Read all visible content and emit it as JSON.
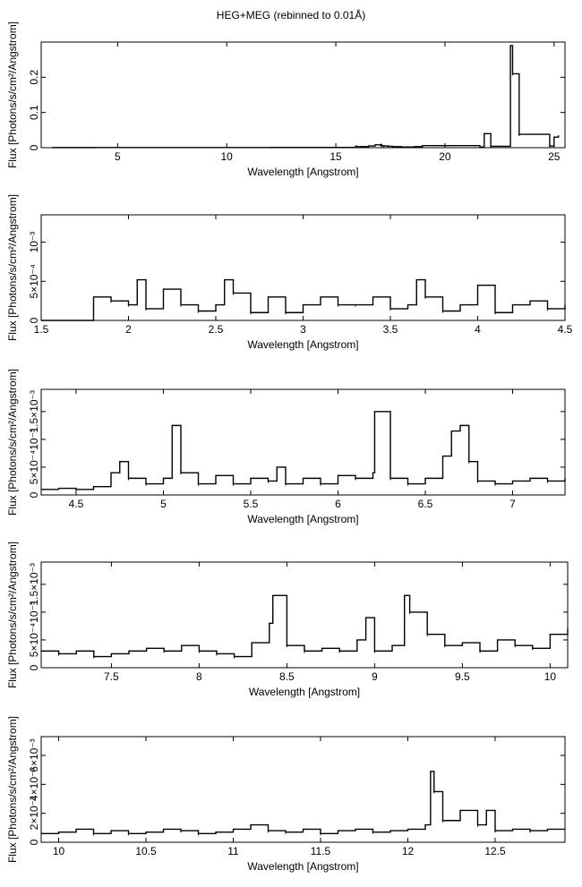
{
  "title": "HEG+MEG (rebinned to 0.01Å)",
  "chart_data": [
    {
      "type": "line",
      "xlabel": "Wavelength [Angstrom]",
      "ylabel": "Flux [Photons/s/cm²/Angstrom]",
      "xlim": [
        1.5,
        25.5
      ],
      "ylim": [
        0,
        0.3
      ],
      "xticks": [
        5,
        10,
        15,
        20,
        25
      ],
      "xtick_labels": [
        "5",
        "10",
        "15",
        "20",
        "25"
      ],
      "yticks": [
        0,
        0.1,
        0.2
      ],
      "ytick_labels": [
        "0",
        "0.1",
        "0.2"
      ],
      "series": [
        {
          "x": [
            2,
            4,
            6,
            8,
            10,
            12,
            14,
            15.9,
            16.0,
            16.1,
            16.5,
            16.8,
            17.05,
            17.1,
            17.2,
            17.4,
            17.6,
            18.0,
            18.6,
            18.97,
            21.6,
            21.8,
            22.1,
            23.0,
            23.1,
            23.4,
            24.8,
            25.0,
            25.2
          ],
          "y": [
            0.0003,
            0.0004,
            0.0005,
            0.0006,
            0.0006,
            0.0007,
            0.0008,
            0.004,
            0.002,
            0.003,
            0.005,
            0.008,
            0.009,
            0.006,
            0.005,
            0.004,
            0.003,
            0.002,
            0.003,
            0.006,
            0.002,
            0.04,
            0.004,
            0.29,
            0.21,
            0.038,
            0.005,
            0.03,
            0.035
          ]
        }
      ]
    },
    {
      "type": "line",
      "xlabel": "Wavelength [Angstrom]",
      "ylabel": "Flux [Photons/s/cm²/Angstrom]",
      "xlim": [
        1.5,
        4.5
      ],
      "ylim": [
        0,
        0.00135
      ],
      "xticks": [
        1.5,
        2,
        2.5,
        3,
        3.5,
        4,
        4.5
      ],
      "xtick_labels": [
        "1.5",
        "2",
        "2.5",
        "3",
        "3.5",
        "4",
        "4.5"
      ],
      "yticks": [
        0,
        0.0005,
        0.001
      ],
      "ytick_labels": [
        "0",
        "5×10⁻⁴",
        "10⁻³"
      ],
      "series": [
        {
          "x": [
            1.5,
            1.6,
            1.7,
            1.8,
            1.9,
            2.0,
            2.05,
            2.1,
            2.2,
            2.3,
            2.4,
            2.5,
            2.55,
            2.6,
            2.7,
            2.8,
            2.9,
            3.0,
            3.1,
            3.2,
            3.3,
            3.4,
            3.5,
            3.6,
            3.65,
            3.7,
            3.8,
            3.9,
            4.0,
            4.1,
            4.2,
            4.3,
            4.4,
            4.5
          ],
          "y": [
            0.0,
            0.0,
            0.0,
            0.0003,
            0.00025,
            0.0002,
            0.00052,
            0.00015,
            0.0004,
            0.0002,
            0.00012,
            0.0002,
            0.00052,
            0.00035,
            0.0001,
            0.0003,
            0.0001,
            0.0002,
            0.0003,
            0.0002,
            0.0002,
            0.0003,
            0.00015,
            0.0002,
            0.00052,
            0.0003,
            0.00012,
            0.0002,
            0.00045,
            0.0001,
            0.0002,
            0.00025,
            0.00015,
            0.0002
          ]
        }
      ]
    },
    {
      "type": "line",
      "xlabel": "Wavelength [Angstrom]",
      "ylabel": "Flux [Photons/s/cm²/Angstrom]",
      "xlim": [
        4.3,
        7.3
      ],
      "ylim": [
        0,
        0.0019
      ],
      "xticks": [
        4.5,
        5,
        5.5,
        6,
        6.5,
        7
      ],
      "xtick_labels": [
        "4.5",
        "5",
        "5.5",
        "6",
        "6.5",
        "7"
      ],
      "yticks": [
        0,
        0.0005,
        0.001,
        0.0015
      ],
      "ytick_labels": [
        "0",
        "5×10⁻⁴",
        "10⁻³",
        "1.5×10⁻³"
      ],
      "series": [
        {
          "x": [
            4.3,
            4.4,
            4.5,
            4.6,
            4.7,
            4.75,
            4.8,
            4.9,
            5.0,
            5.05,
            5.1,
            5.2,
            5.3,
            5.4,
            5.5,
            5.6,
            5.65,
            5.7,
            5.8,
            5.9,
            6.0,
            6.1,
            6.2,
            6.21,
            6.3,
            6.4,
            6.5,
            6.6,
            6.65,
            6.7,
            6.75,
            6.8,
            6.9,
            7.0,
            7.1,
            7.2,
            7.3
          ],
          "y": [
            0.0001,
            0.00012,
            0.0001,
            0.00015,
            0.0004,
            0.0006,
            0.0003,
            0.0002,
            0.0003,
            0.00125,
            0.0004,
            0.0002,
            0.00035,
            0.0002,
            0.0003,
            0.00025,
            0.0005,
            0.0002,
            0.0003,
            0.0002,
            0.00035,
            0.0003,
            0.0004,
            0.0015,
            0.0003,
            0.0002,
            0.0003,
            0.0007,
            0.00115,
            0.00125,
            0.0006,
            0.00025,
            0.0002,
            0.00025,
            0.0003,
            0.00025,
            0.0003
          ]
        }
      ]
    },
    {
      "type": "line",
      "xlabel": "Wavelength [Angstrom]",
      "ylabel": "Flux [Photons/s/cm²/Angstrom]",
      "xlim": [
        7.1,
        10.1
      ],
      "ylim": [
        0,
        0.0019
      ],
      "xticks": [
        7.5,
        8,
        8.5,
        9,
        9.5,
        10
      ],
      "xtick_labels": [
        "7.5",
        "8",
        "8.5",
        "9",
        "9.5",
        "10"
      ],
      "yticks": [
        0,
        0.0005,
        0.001,
        0.0015
      ],
      "ytick_labels": [
        "0",
        "5×10⁻⁴",
        "10⁻³",
        "1.5×10⁻³"
      ],
      "series": [
        {
          "x": [
            7.1,
            7.2,
            7.3,
            7.4,
            7.5,
            7.6,
            7.7,
            7.8,
            7.9,
            8.0,
            8.1,
            8.2,
            8.3,
            8.4,
            8.42,
            8.5,
            8.6,
            8.7,
            8.8,
            8.9,
            8.95,
            9.0,
            9.1,
            9.17,
            9.2,
            9.3,
            9.4,
            9.5,
            9.6,
            9.7,
            9.8,
            9.9,
            10.0,
            10.1
          ],
          "y": [
            0.0003,
            0.00025,
            0.0003,
            0.0002,
            0.00025,
            0.0003,
            0.00035,
            0.0003,
            0.0004,
            0.0003,
            0.00025,
            0.0002,
            0.00045,
            0.0008,
            0.0013,
            0.0004,
            0.0003,
            0.00035,
            0.0003,
            0.0005,
            0.0009,
            0.0003,
            0.0004,
            0.0013,
            0.001,
            0.0006,
            0.0004,
            0.00045,
            0.0003,
            0.0005,
            0.0004,
            0.00035,
            0.0006,
            0.0007
          ]
        }
      ]
    },
    {
      "type": "line",
      "xlabel": "Wavelength [Angstrom]",
      "ylabel": "Flux [Photons/s/cm²/Angstrom]",
      "xlim": [
        9.9,
        12.9
      ],
      "ylim": [
        0,
        0.0073
      ],
      "xticks": [
        10,
        10.5,
        11,
        11.5,
        12,
        12.5
      ],
      "xtick_labels": [
        "10",
        "10.5",
        "11",
        "11.5",
        "12",
        "12.5"
      ],
      "yticks": [
        0,
        0.002,
        0.004,
        0.006
      ],
      "ytick_labels": [
        "0",
        "2×10⁻³",
        "4×10⁻³",
        "6×10⁻³"
      ],
      "series": [
        {
          "x": [
            9.9,
            10.0,
            10.1,
            10.2,
            10.3,
            10.4,
            10.5,
            10.6,
            10.7,
            10.8,
            10.9,
            11.0,
            11.1,
            11.2,
            11.3,
            11.4,
            11.5,
            11.6,
            11.7,
            11.8,
            11.9,
            12.0,
            12.1,
            12.13,
            12.15,
            12.2,
            12.3,
            12.4,
            12.45,
            12.5,
            12.6,
            12.7,
            12.8,
            12.9
          ],
          "y": [
            0.0006,
            0.0007,
            0.0009,
            0.0006,
            0.0008,
            0.0006,
            0.0007,
            0.0009,
            0.0008,
            0.0006,
            0.0007,
            0.0009,
            0.0012,
            0.0008,
            0.0007,
            0.0009,
            0.0006,
            0.0008,
            0.0009,
            0.0007,
            0.0008,
            0.0009,
            0.0012,
            0.0049,
            0.0035,
            0.0015,
            0.0022,
            0.0012,
            0.0022,
            0.0008,
            0.0009,
            0.0008,
            0.0009,
            0.0009
          ]
        }
      ]
    }
  ]
}
